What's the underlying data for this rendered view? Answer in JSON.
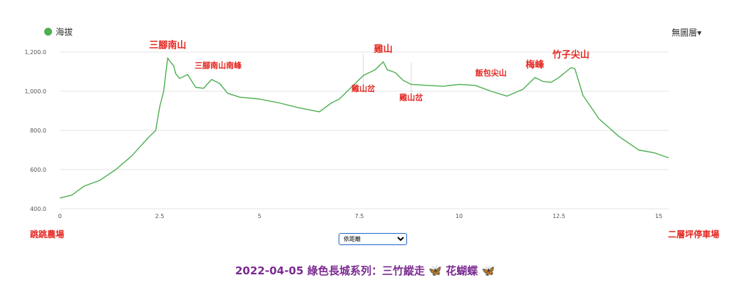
{
  "legend": {
    "label": "海拔",
    "color": "#4caf50"
  },
  "layer_menu": {
    "label": "無圖層▾"
  },
  "endpoints": {
    "start": "跳跳農場",
    "end": "二層坪停車場"
  },
  "mode_select": {
    "options": [
      "依距離"
    ],
    "selected": "依距離"
  },
  "caption": {
    "text": "2022-04-05 綠色長城系列：三竹縱走",
    "butterfly": "🦋",
    "suffix": "花蝴蝶",
    "butterfly2": "🦋"
  },
  "chart_data": {
    "type": "line",
    "title": "",
    "xlabel": "",
    "ylabel": "",
    "xlim": [
      0,
      15.25
    ],
    "ylim": [
      400,
      1200
    ],
    "grid": true,
    "legend_position": "top-left",
    "x_ticks": [
      0,
      2.5,
      5,
      7.5,
      10,
      12.5,
      15
    ],
    "x_tick_labels": [
      "0",
      "2.5",
      "5",
      "7.5",
      "10",
      "12.5",
      "15"
    ],
    "y_ticks": [
      400,
      600,
      800,
      1000,
      1200
    ],
    "y_tick_labels": [
      "400.0",
      "600.0",
      "800.0",
      "1,000.0",
      "1,200.0"
    ],
    "series": [
      {
        "name": "海拔",
        "color": "#4caf50",
        "x": [
          0,
          0.3,
          0.6,
          1.0,
          1.4,
          1.8,
          2.2,
          2.4,
          2.5,
          2.6,
          2.7,
          2.75,
          2.85,
          2.9,
          3.0,
          3.2,
          3.4,
          3.6,
          3.8,
          4.0,
          4.2,
          4.5,
          5.0,
          5.5,
          6.0,
          6.5,
          6.8,
          7.0,
          7.3,
          7.6,
          7.9,
          8.1,
          8.2,
          8.4,
          8.6,
          8.8,
          9.2,
          9.6,
          10.0,
          10.4,
          10.8,
          11.2,
          11.6,
          11.9,
          12.1,
          12.3,
          12.5,
          12.8,
          12.9,
          13.1,
          13.5,
          14.0,
          14.5,
          14.9,
          15.25
        ],
        "y": [
          455,
          470,
          515,
          545,
          600,
          670,
          760,
          800,
          920,
          1000,
          1170,
          1155,
          1130,
          1090,
          1065,
          1085,
          1020,
          1015,
          1060,
          1040,
          990,
          970,
          960,
          940,
          915,
          895,
          940,
          960,
          1020,
          1080,
          1110,
          1150,
          1110,
          1095,
          1055,
          1035,
          1030,
          1025,
          1035,
          1030,
          1000,
          975,
          1010,
          1070,
          1050,
          1045,
          1070,
          1120,
          1115,
          980,
          860,
          770,
          700,
          685,
          660
        ]
      }
    ],
    "annotations": [
      {
        "text": "三腳南山",
        "x": 2.7,
        "y": 1170,
        "size": "large"
      },
      {
        "text": "三腳南山南峰",
        "x": 3.75,
        "y": 1060,
        "size": "small"
      },
      {
        "text": "雞山",
        "x": 8.1,
        "y": 1150,
        "size": "large"
      },
      {
        "text": "雞山岔",
        "x": 7.6,
        "y": 1080,
        "size": "small",
        "below": true
      },
      {
        "text": "雞山岔",
        "x": 8.8,
        "y": 1035,
        "size": "small",
        "below": true
      },
      {
        "text": "飯包尖山",
        "x": 10.8,
        "y": 1030,
        "size": "small"
      },
      {
        "text": "梅峰",
        "x": 11.9,
        "y": 1070,
        "size": "large"
      },
      {
        "text": "竹子尖山",
        "x": 12.8,
        "y": 1120,
        "size": "large"
      }
    ]
  }
}
